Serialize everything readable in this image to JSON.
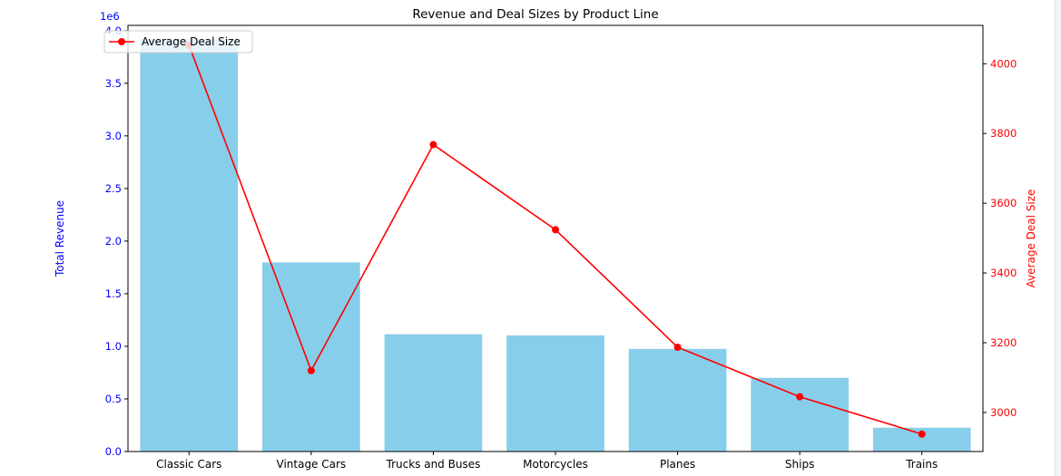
{
  "chart_data": {
    "type": "bar",
    "title": "Revenue and Deal Sizes by Product Line",
    "xlabel": "",
    "ylabel": "Total Revenue",
    "y2label": "Average Deal Size",
    "y_offset_label": "1e6",
    "categories": [
      "Classic Cars",
      "Vintage Cars",
      "Trucks and Buses",
      "Motorcycles",
      "Planes",
      "Ships",
      "Trains"
    ],
    "series": [
      {
        "axis": "left",
        "type": "bar",
        "color": "#87CEEB",
        "values": [
          3919616,
          1797560,
          1114128,
          1103510,
          975004,
          700040,
          226243
        ]
      },
      {
        "name": "Average Deal Size",
        "axis": "right",
        "type": "line",
        "marker": "circle",
        "color": "#ff0000",
        "values": [
          4053,
          3120,
          3768,
          3524,
          3187,
          3045,
          2938
        ]
      }
    ],
    "ylim": [
      0,
      4.05
    ],
    "y_ticks": [
      "0.0",
      "0.5",
      "1.0",
      "1.5",
      "2.0",
      "2.5",
      "3.0",
      "3.5",
      "4.0"
    ],
    "y2lim": [
      2888,
      4110
    ],
    "y2_ticks": [
      "3000",
      "3200",
      "3400",
      "3600",
      "3800",
      "4000"
    ],
    "left_axis_color": "#0000ff",
    "right_axis_color": "#ff0000",
    "grid": false,
    "legend": {
      "position": "top-left",
      "entries": [
        "Average Deal Size"
      ]
    }
  }
}
